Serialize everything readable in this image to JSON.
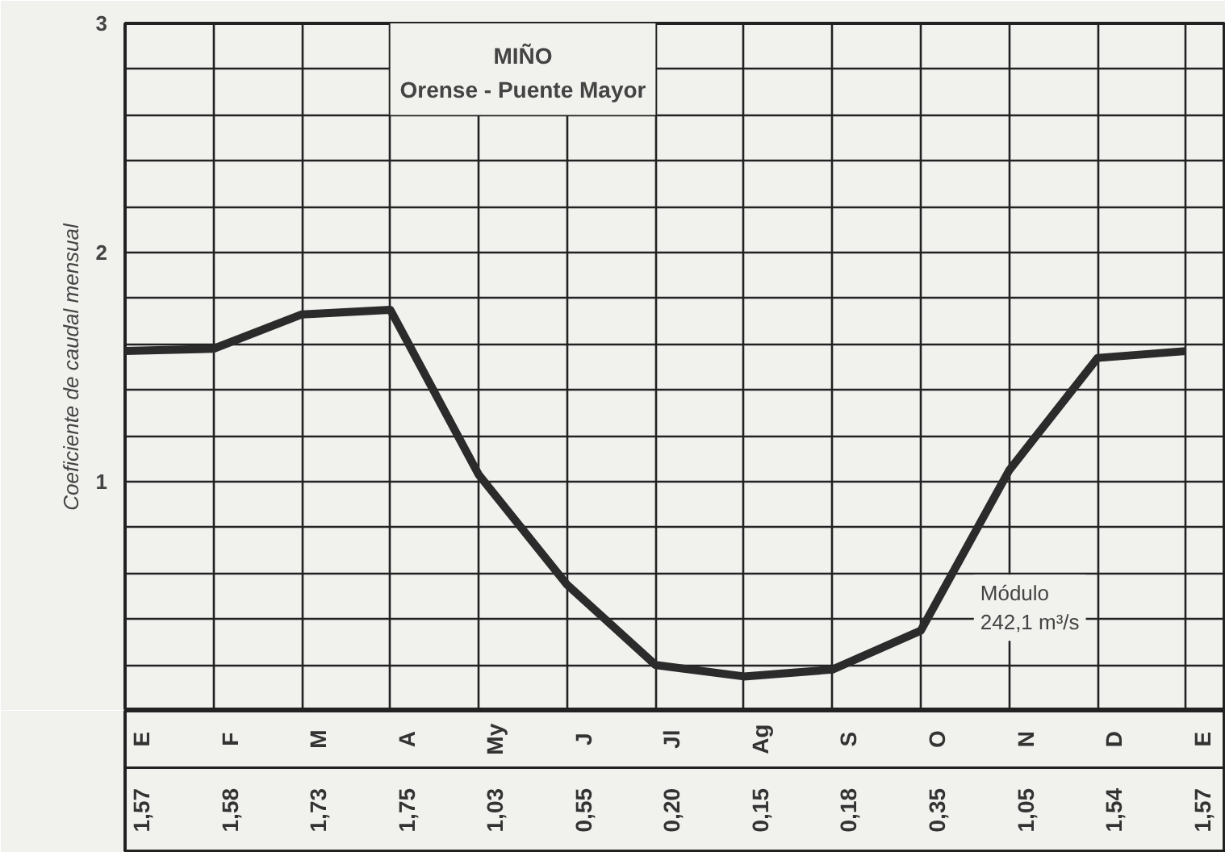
{
  "chart_data": {
    "type": "line",
    "title": "MIÑO",
    "subtitle": "Orense - Puente Mayor",
    "ylabel": "Coeficiente de caudal mensual",
    "categories": [
      "E",
      "F",
      "M",
      "A",
      "My",
      "J",
      "Jl",
      "Ag",
      "S",
      "O",
      "N",
      "D",
      "E"
    ],
    "values": [
      1.57,
      1.58,
      1.73,
      1.75,
      1.03,
      0.55,
      0.2,
      0.15,
      0.18,
      0.35,
      1.05,
      1.54,
      1.57
    ],
    "value_labels": [
      "1,57",
      "1,58",
      "1,73",
      "1,75",
      "1,03",
      "0,55",
      "0,20",
      "0,15",
      "0,18",
      "0,35",
      "1,05",
      "1,54",
      "1,57"
    ],
    "color": "#2b2b2b",
    "ylim": [
      0,
      3
    ],
    "yticks": [
      {
        "value": 0.2,
        "label": null
      },
      {
        "value": 0.4,
        "label": null
      },
      {
        "value": 0.6,
        "label": null
      },
      {
        "value": 0.8,
        "label": null
      },
      1,
      {
        "value": 1.2,
        "label": null
      },
      {
        "value": 1.4,
        "label": null
      },
      {
        "value": 1.6,
        "label": null
      },
      {
        "value": 1.8,
        "label": null
      },
      2,
      {
        "value": 2.2,
        "label": null
      },
      {
        "value": 2.4,
        "label": null
      },
      {
        "value": 2.6,
        "label": null
      },
      {
        "value": 2.8,
        "label": null
      },
      3
    ],
    "grid": true,
    "tick_labels": "y",
    "marker": "none",
    "line_style": "solid",
    "annotations": [
      "Módulo 242,1 m³/s"
    ]
  }
}
